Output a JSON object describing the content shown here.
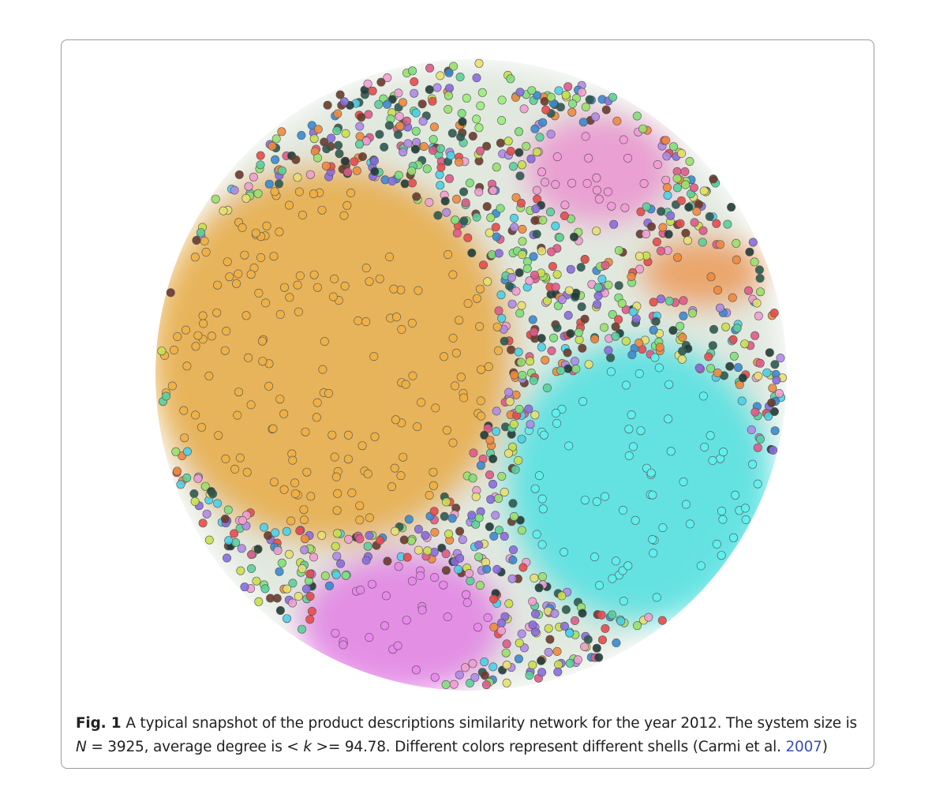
{
  "figure": {
    "label": "Fig. 1",
    "caption": [
      "A typical snapshot of the product descriptions similarity network for the year 2012. The system size is",
      "N",
      "= 3925, average degree is <",
      "k",
      ">= 94.78. Different colors represent different shells (Carmi et al.",
      "2007",
      ")"
    ]
  }
}
